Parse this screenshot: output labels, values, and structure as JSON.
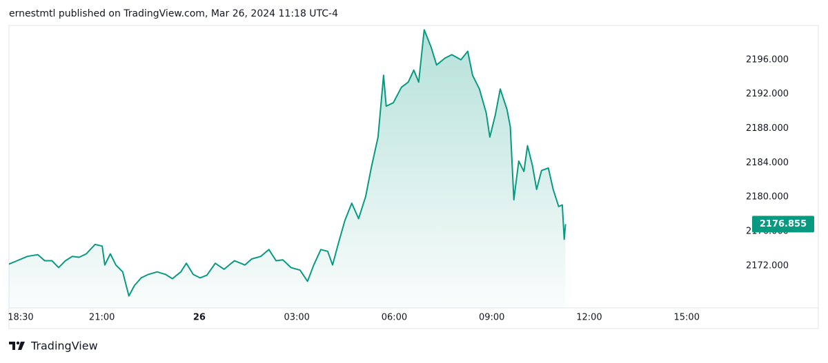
{
  "chart_data": {
    "type": "area",
    "title": "ernestmtl published on TradingView.com, Mar 26, 2024 11:18 UTC-4",
    "color": "#089981",
    "x": [
      18.14,
      18.39,
      18.71,
      19.03,
      19.24,
      19.46,
      19.67,
      19.88,
      20.09,
      20.3,
      20.52,
      20.79,
      21.01,
      21.09,
      21.26,
      21.43,
      21.64,
      21.83,
      22.0,
      22.21,
      22.43,
      22.7,
      22.96,
      23.17,
      23.43,
      23.6,
      23.81,
      24.02,
      24.23,
      24.49,
      24.76,
      25.08,
      25.4,
      25.61,
      25.89,
      26.14,
      26.36,
      26.57,
      26.82,
      27.1,
      27.33,
      27.52,
      27.74,
      27.95,
      28.1,
      28.27,
      28.48,
      28.69,
      28.9,
      29.12,
      29.29,
      29.5,
      29.67,
      29.75,
      29.97,
      30.22,
      30.43,
      30.6,
      30.75,
      30.92,
      31.13,
      31.3,
      31.56,
      31.77,
      32.05,
      32.26,
      32.41,
      32.62,
      32.83,
      32.94,
      33.11,
      33.26,
      33.47,
      33.57,
      33.68,
      33.83,
      33.99,
      34.1,
      34.25,
      34.38,
      34.53,
      34.74,
      34.89,
      35.06,
      35.17,
      35.23,
      35.27
    ],
    "values": [
      2172.2,
      2172.6,
      2173.1,
      2173.3,
      2172.6,
      2172.6,
      2171.8,
      2172.6,
      2173.1,
      2173.0,
      2173.4,
      2174.5,
      2174.3,
      2172.1,
      2173.4,
      2172.1,
      2171.3,
      2168.5,
      2169.7,
      2170.6,
      2171.0,
      2171.3,
      2171.0,
      2170.5,
      2171.3,
      2172.3,
      2171.0,
      2170.6,
      2170.9,
      2172.3,
      2171.6,
      2172.6,
      2172.1,
      2172.8,
      2173.1,
      2173.9,
      2172.6,
      2172.7,
      2171.8,
      2171.5,
      2170.2,
      2172.1,
      2173.9,
      2173.7,
      2172.1,
      2174.5,
      2177.3,
      2179.3,
      2177.5,
      2180.1,
      2183.4,
      2187.0,
      2194.2,
      2190.6,
      2191.0,
      2192.8,
      2193.4,
      2194.8,
      2193.4,
      2199.5,
      2197.5,
      2195.4,
      2196.2,
      2196.6,
      2196.0,
      2197.0,
      2194.2,
      2192.6,
      2189.8,
      2187.0,
      2189.6,
      2192.6,
      2190.2,
      2188.2,
      2179.7,
      2184.2,
      2183.0,
      2186.0,
      2183.7,
      2180.9,
      2183.1,
      2183.4,
      2180.9,
      2178.9,
      2179.1,
      2175.1,
      2176.855
    ],
    "xlim": [
      18.14,
      40.8
    ],
    "xticks": [
      {
        "value": 18.5,
        "label": "18:30"
      },
      {
        "value": 21,
        "label": "21:00"
      },
      {
        "value": 24,
        "label": "26"
      },
      {
        "value": 27,
        "label": "03:00"
      },
      {
        "value": 30,
        "label": "06:00"
      },
      {
        "value": 33,
        "label": "09:00"
      },
      {
        "value": 36,
        "label": "12:00"
      },
      {
        "value": 39,
        "label": "15:00"
      }
    ],
    "ylim": [
      2167.1,
      2200.0
    ],
    "yticks": [
      {
        "value": 2172,
        "label": "2172.000"
      },
      {
        "value": 2176,
        "label": "2176.000"
      },
      {
        "value": 2180,
        "label": "2180.000"
      },
      {
        "value": 2184,
        "label": "2184.000"
      },
      {
        "value": 2188,
        "label": "2188.000"
      },
      {
        "value": 2192,
        "label": "2192.000"
      },
      {
        "value": 2196,
        "label": "2196.000"
      }
    ]
  },
  "brand": "TradingView"
}
